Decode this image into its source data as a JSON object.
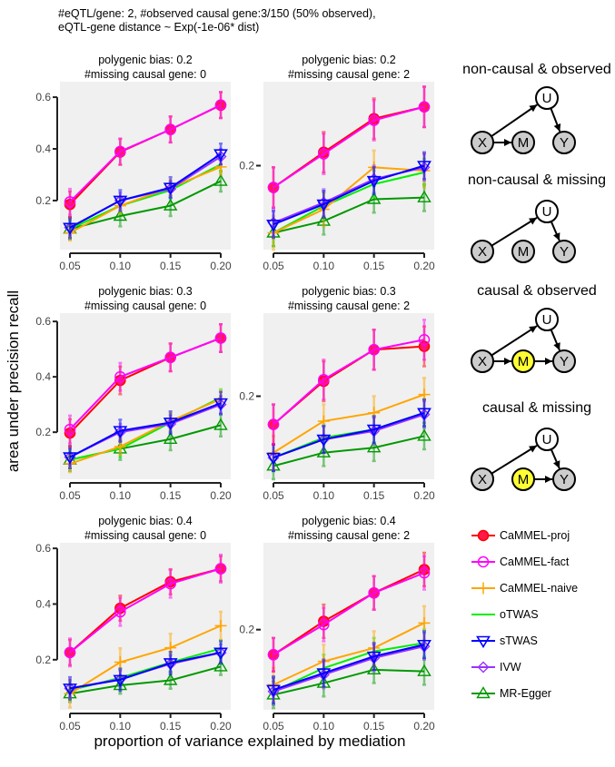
{
  "header": {
    "line1": "#eQTL/gene: 2, #observed causal gene:3/150 (50% observed),",
    "line2": "eQTL-gene distance ~ Exp(-1e-06* dist)"
  },
  "axis": {
    "ylabel": "area under precision recall",
    "xlabel": "proportion of variance explained by mediation"
  },
  "dags": [
    {
      "title": "non-causal & observed",
      "nodes": [
        "X",
        "M",
        "Y",
        "U"
      ],
      "mediator_color": "#cccccc",
      "edges": [
        [
          "X",
          "U"
        ],
        [
          "U",
          "Y"
        ],
        [
          "X",
          "M"
        ]
      ]
    },
    {
      "title": "non-causal & missing",
      "nodes": [
        "X",
        "M",
        "Y",
        "U"
      ],
      "mediator_color": "#cccccc",
      "edges": [
        [
          "X",
          "U"
        ],
        [
          "U",
          "Y"
        ]
      ]
    },
    {
      "title": "causal & observed",
      "nodes": [
        "X",
        "M",
        "Y",
        "U"
      ],
      "mediator_color": "#ffff33",
      "edges": [
        [
          "X",
          "U"
        ],
        [
          "U",
          "Y"
        ],
        [
          "X",
          "M"
        ],
        [
          "M",
          "Y"
        ]
      ]
    },
    {
      "title": "causal & missing",
      "nodes": [
        "X",
        "M",
        "Y",
        "U"
      ],
      "mediator_color": "#ffff33",
      "edges": [
        [
          "X",
          "U"
        ],
        [
          "U",
          "Y"
        ],
        [
          "M",
          "Y"
        ]
      ]
    }
  ],
  "legend": [
    {
      "name": "CaMMEL-proj",
      "color": "#ff0000",
      "marker": "filled-circle"
    },
    {
      "name": "CaMMEL-fact",
      "color": "#ff00ff",
      "marker": "open-circle"
    },
    {
      "name": "CaMMEL-naive",
      "color": "#ffa500",
      "marker": "plus"
    },
    {
      "name": "oTWAS",
      "color": "#00ee00",
      "marker": "none"
    },
    {
      "name": "sTWAS",
      "color": "#0000ff",
      "marker": "down-triangle"
    },
    {
      "name": "IVW",
      "color": "#9933ff",
      "marker": "diamond"
    },
    {
      "name": "MR-Egger",
      "color": "#009900",
      "marker": "triangle"
    }
  ],
  "chart_data": [
    {
      "type": "line",
      "title": [
        "polygenic bias: 0.2",
        "#missing causal gene: 0"
      ],
      "x": [
        0.05,
        0.1,
        0.15,
        0.2
      ],
      "x_tick_labels": [
        "0.05",
        "0.10",
        "0.15",
        "0.20"
      ],
      "y_ticks": [
        0.2,
        0.4,
        0.6
      ],
      "y_tick_labels": [
        "0.2",
        "0.4",
        "0.6"
      ],
      "ylim": [
        0.01,
        0.66
      ],
      "grid": false,
      "series": [
        {
          "name": "CaMMEL-proj",
          "values": [
            0.185,
            0.388,
            0.475,
            0.569
          ],
          "err": 0.05
        },
        {
          "name": "CaMMEL-fact",
          "values": [
            0.195,
            0.39,
            0.475,
            0.57
          ],
          "err": 0.05
        },
        {
          "name": "CaMMEL-naive",
          "values": [
            0.075,
            0.18,
            0.25,
            0.33
          ],
          "err": 0.03
        },
        {
          "name": "oTWAS",
          "values": [
            0.09,
            0.18,
            0.24,
            0.34
          ],
          "err": 0.03
        },
        {
          "name": "sTWAS",
          "values": [
            0.095,
            0.2,
            0.25,
            0.38
          ],
          "err": 0.04
        },
        {
          "name": "IVW",
          "values": [
            0.095,
            0.2,
            0.245,
            0.37
          ],
          "err": 0.03
        },
        {
          "name": "MR-Egger",
          "values": [
            0.09,
            0.14,
            0.18,
            0.275
          ],
          "err": 0.04
        }
      ]
    },
    {
      "type": "line",
      "title": [
        "polygenic bias: 0.2",
        "#missing causal gene: 2"
      ],
      "x": [
        0.05,
        0.1,
        0.15,
        0.2
      ],
      "x_tick_labels": [
        "0.05",
        "0.10",
        "0.15",
        "0.20"
      ],
      "y_ticks": [
        0.2
      ],
      "y_tick_labels": [
        "0.2"
      ],
      "ylim": [
        0.15,
        0.25
      ],
      "grid": false,
      "series": [
        {
          "name": "CaMMEL-proj",
          "values": [
            0.187,
            0.208,
            0.228,
            0.235
          ],
          "err": 0.012
        },
        {
          "name": "CaMMEL-fact",
          "values": [
            0.187,
            0.207,
            0.227,
            0.235
          ],
          "err": 0.012
        },
        {
          "name": "CaMMEL-naive",
          "values": [
            0.16,
            0.174,
            0.199,
            0.197
          ],
          "err": 0.01
        },
        {
          "name": "oTWAS",
          "values": [
            0.16,
            0.176,
            0.189,
            0.196
          ],
          "err": 0.008
        },
        {
          "name": "sTWAS",
          "values": [
            0.165,
            0.177,
            0.191,
            0.2
          ],
          "err": 0.008
        },
        {
          "name": "IVW",
          "values": [
            0.166,
            0.178,
            0.192,
            0.199
          ],
          "err": 0.008
        },
        {
          "name": "MR-Egger",
          "values": [
            0.16,
            0.167,
            0.18,
            0.181
          ],
          "err": 0.008
        }
      ]
    },
    {
      "type": "line",
      "title": [
        "polygenic bias: 0.3",
        "#missing causal gene: 0"
      ],
      "x": [
        0.05,
        0.1,
        0.15,
        0.2
      ],
      "x_tick_labels": [
        "0.05",
        "0.10",
        "0.15",
        "0.20"
      ],
      "y_ticks": [
        0.2,
        0.4,
        0.6
      ],
      "y_tick_labels": [
        "0.2",
        "0.4",
        "0.6"
      ],
      "ylim": [
        0.03,
        0.63
      ],
      "grid": false,
      "series": [
        {
          "name": "CaMMEL-proj",
          "values": [
            0.197,
            0.387,
            0.47,
            0.54
          ],
          "err": 0.05
        },
        {
          "name": "CaMMEL-fact",
          "values": [
            0.21,
            0.4,
            0.47,
            0.54
          ],
          "err": 0.05
        },
        {
          "name": "CaMMEL-naive",
          "values": [
            0.086,
            0.148,
            0.24,
            0.32
          ],
          "err": 0.03
        },
        {
          "name": "oTWAS",
          "values": [
            0.1,
            0.14,
            0.235,
            0.325
          ],
          "err": 0.03
        },
        {
          "name": "sTWAS",
          "values": [
            0.11,
            0.205,
            0.235,
            0.305
          ],
          "err": 0.04
        },
        {
          "name": "IVW",
          "values": [
            0.11,
            0.2,
            0.23,
            0.3
          ],
          "err": 0.03
        },
        {
          "name": "MR-Egger",
          "values": [
            0.1,
            0.14,
            0.175,
            0.225
          ],
          "err": 0.04
        }
      ]
    },
    {
      "type": "line",
      "title": [
        "polygenic bias: 0.3",
        "#missing causal gene: 2"
      ],
      "x": [
        0.05,
        0.1,
        0.15,
        0.2
      ],
      "x_tick_labels": [
        "0.05",
        "0.10",
        "0.15",
        "0.20"
      ],
      "y_ticks": [
        0.2
      ],
      "y_tick_labels": [
        "0.2"
      ],
      "ylim": [
        0.15,
        0.25
      ],
      "grid": false,
      "series": [
        {
          "name": "CaMMEL-proj",
          "values": [
            0.183,
            0.209,
            0.228,
            0.23
          ],
          "err": 0.012
        },
        {
          "name": "CaMMEL-fact",
          "values": [
            0.183,
            0.21,
            0.228,
            0.234
          ],
          "err": 0.012
        },
        {
          "name": "CaMMEL-naive",
          "values": [
            0.166,
            0.185,
            0.19,
            0.201
          ],
          "err": 0.01
        },
        {
          "name": "oTWAS",
          "values": [
            0.163,
            0.175,
            0.18,
            0.19
          ],
          "err": 0.008
        },
        {
          "name": "sTWAS",
          "values": [
            0.163,
            0.174,
            0.18,
            0.19
          ],
          "err": 0.008
        },
        {
          "name": "IVW",
          "values": [
            0.163,
            0.174,
            0.179,
            0.189
          ],
          "err": 0.008
        },
        {
          "name": "MR-Egger",
          "values": [
            0.158,
            0.166,
            0.169,
            0.176
          ],
          "err": 0.008
        }
      ]
    },
    {
      "type": "line",
      "title": [
        "polygenic bias: 0.4",
        "#missing causal gene: 0"
      ],
      "x": [
        0.05,
        0.1,
        0.15,
        0.2
      ],
      "x_tick_labels": [
        "0.05",
        "0.10",
        "0.15",
        "0.20"
      ],
      "y_ticks": [
        0.2,
        0.4,
        0.6
      ],
      "y_tick_labels": [
        "0.2",
        "0.4",
        "0.6"
      ],
      "ylim": [
        0.02,
        0.62
      ],
      "grid": false,
      "series": [
        {
          "name": "CaMMEL-proj",
          "values": [
            0.226,
            0.385,
            0.48,
            0.527
          ],
          "err": 0.045
        },
        {
          "name": "CaMMEL-fact",
          "values": [
            0.226,
            0.372,
            0.473,
            0.527
          ],
          "err": 0.05
        },
        {
          "name": "CaMMEL-naive",
          "values": [
            0.078,
            0.191,
            0.243,
            0.322
          ],
          "err": 0.05
        },
        {
          "name": "oTWAS",
          "values": [
            0.09,
            0.135,
            0.19,
            0.24
          ],
          "err": 0.03
        },
        {
          "name": "sTWAS",
          "values": [
            0.097,
            0.128,
            0.188,
            0.226
          ],
          "err": 0.04
        },
        {
          "name": "IVW",
          "values": [
            0.097,
            0.13,
            0.185,
            0.225
          ],
          "err": 0.03
        },
        {
          "name": "MR-Egger",
          "values": [
            0.078,
            0.108,
            0.126,
            0.175
          ],
          "err": 0.03
        }
      ]
    },
    {
      "type": "line",
      "title": [
        "polygenic bias: 0.4",
        "#missing causal gene: 2"
      ],
      "x": [
        0.05,
        0.1,
        0.15,
        0.2
      ],
      "x_tick_labels": [
        "0.05",
        "0.10",
        "0.15",
        "0.20"
      ],
      "y_ticks": [
        0.2
      ],
      "y_tick_labels": [
        "0.2"
      ],
      "ylim": [
        0.152,
        0.252
      ],
      "grid": false,
      "series": [
        {
          "name": "CaMMEL-proj",
          "values": [
            0.185,
            0.205,
            0.222,
            0.236
          ],
          "err": 0.01
        },
        {
          "name": "CaMMEL-fact",
          "values": [
            0.185,
            0.203,
            0.222,
            0.234
          ],
          "err": 0.01
        },
        {
          "name": "CaMMEL-naive",
          "values": [
            0.167,
            0.181,
            0.189,
            0.204
          ],
          "err": 0.01
        },
        {
          "name": "oTWAS",
          "values": [
            0.163,
            0.177,
            0.187,
            0.192
          ],
          "err": 0.008
        },
        {
          "name": "sTWAS",
          "values": [
            0.164,
            0.174,
            0.184,
            0.191
          ],
          "err": 0.008
        },
        {
          "name": "IVW",
          "values": [
            0.163,
            0.173,
            0.183,
            0.19
          ],
          "err": 0.008
        },
        {
          "name": "MR-Egger",
          "values": [
            0.161,
            0.168,
            0.176,
            0.175
          ],
          "err": 0.008
        }
      ]
    }
  ]
}
